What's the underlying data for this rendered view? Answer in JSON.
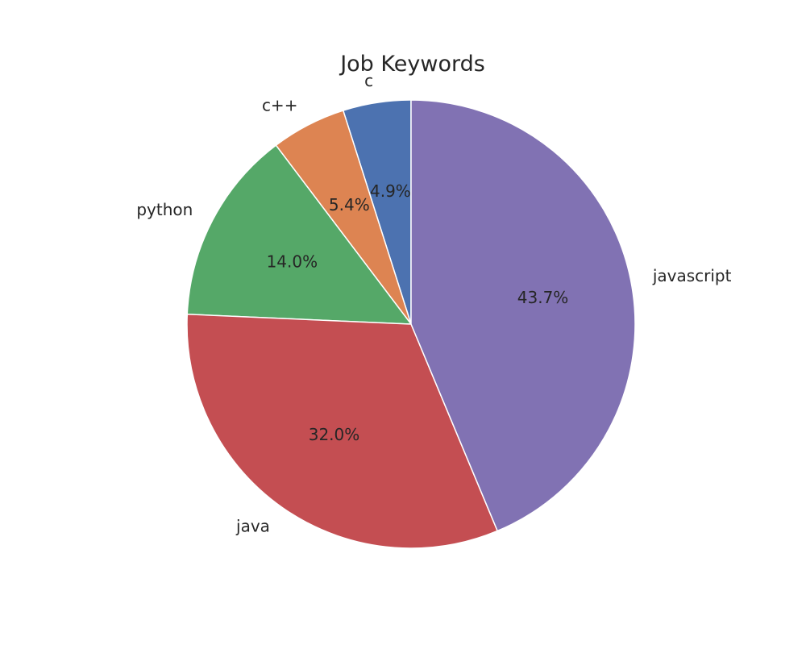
{
  "chart_data": {
    "type": "pie",
    "title": "Job Keywords",
    "start_angle_deg": 90,
    "direction": "counterclockwise",
    "slices": [
      {
        "label": "c",
        "value": 4.9,
        "pct_label": "4.9%",
        "color": "#4c72b0"
      },
      {
        "label": "c++",
        "value": 5.4,
        "pct_label": "5.4%",
        "color": "#dd8452"
      },
      {
        "label": "python",
        "value": 14.0,
        "pct_label": "14.0%",
        "color": "#55a868"
      },
      {
        "label": "java",
        "value": 32.0,
        "pct_label": "32.0%",
        "color": "#c44e52"
      },
      {
        "label": "javascript",
        "value": 43.7,
        "pct_label": "43.7%",
        "color": "#8172b3"
      }
    ]
  }
}
